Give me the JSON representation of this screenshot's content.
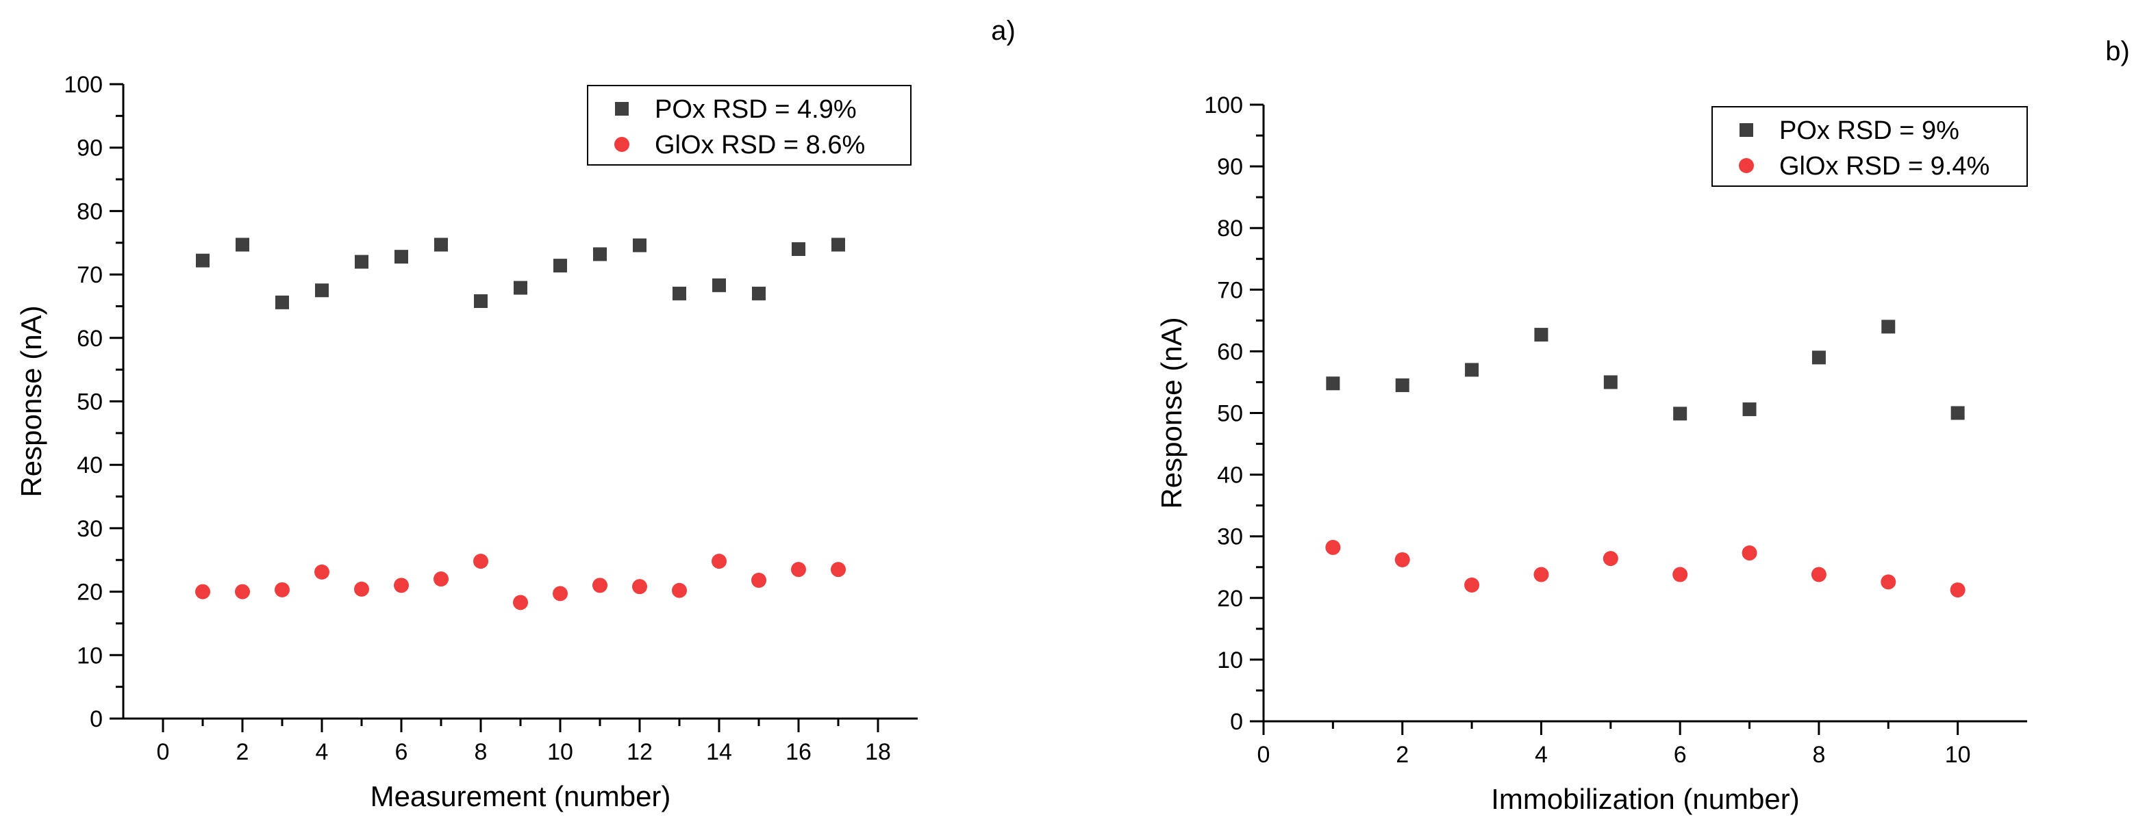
{
  "chart_data": [
    {
      "type": "scatter",
      "panel_label": "a)",
      "xlabel": "Measurement (number)",
      "ylabel": "Response (nA)",
      "xlim": [
        -1,
        19
      ],
      "ylim": [
        0,
        100
      ],
      "x_major_ticks": [
        0,
        2,
        4,
        6,
        8,
        10,
        12,
        14,
        16,
        18
      ],
      "y_major_ticks": [
        0,
        10,
        20,
        30,
        40,
        50,
        60,
        70,
        80,
        90,
        100
      ],
      "grid": false,
      "legend_position": "top-right",
      "series": [
        {
          "name": "POx RSD = 4.9%",
          "marker": "square",
          "color": "#3f3f3f",
          "x": [
            1,
            2,
            3,
            4,
            5,
            6,
            7,
            8,
            9,
            10,
            11,
            12,
            13,
            14,
            15,
            16,
            17
          ],
          "y": [
            72.2,
            74.7,
            65.6,
            67.5,
            72.0,
            72.8,
            74.7,
            65.8,
            67.9,
            71.4,
            73.2,
            74.6,
            67.0,
            68.3,
            67.0,
            74.0,
            74.7
          ]
        },
        {
          "name": "GlOx RSD = 8.6%",
          "marker": "circle",
          "color": "#f03c3c",
          "x": [
            1,
            2,
            3,
            4,
            5,
            6,
            7,
            8,
            9,
            10,
            11,
            12,
            13,
            14,
            15,
            16,
            17
          ],
          "y": [
            20.0,
            20.0,
            20.3,
            23.1,
            20.4,
            21.0,
            22.0,
            24.8,
            18.3,
            19.7,
            21.0,
            20.8,
            20.2,
            24.8,
            21.8,
            23.5,
            23.5
          ]
        }
      ]
    },
    {
      "type": "scatter",
      "panel_label": "b)",
      "xlabel": "Immobilization (number)",
      "ylabel": "Response (nA)",
      "xlim": [
        0,
        11
      ],
      "ylim": [
        0,
        100
      ],
      "x_major_ticks": [
        0,
        2,
        4,
        6,
        8,
        10
      ],
      "y_major_ticks": [
        0,
        10,
        20,
        30,
        40,
        50,
        60,
        70,
        80,
        90,
        100
      ],
      "grid": false,
      "legend_position": "top-right",
      "series": [
        {
          "name": "POx RSD = 9%",
          "marker": "square",
          "color": "#3f3f3f",
          "x": [
            1,
            2,
            3,
            4,
            5,
            6,
            7,
            8,
            9,
            10
          ],
          "y": [
            54.8,
            54.5,
            57.0,
            62.7,
            55.0,
            49.9,
            50.6,
            59.0,
            64.0,
            50.0
          ]
        },
        {
          "name": "GlOx RSD = 9.4%",
          "marker": "circle",
          "color": "#f03c3c",
          "x": [
            1,
            2,
            3,
            4,
            5,
            6,
            7,
            8,
            9,
            10
          ],
          "y": [
            28.2,
            26.2,
            22.1,
            23.8,
            26.4,
            23.8,
            27.3,
            23.8,
            22.6,
            21.3
          ]
        }
      ]
    }
  ]
}
